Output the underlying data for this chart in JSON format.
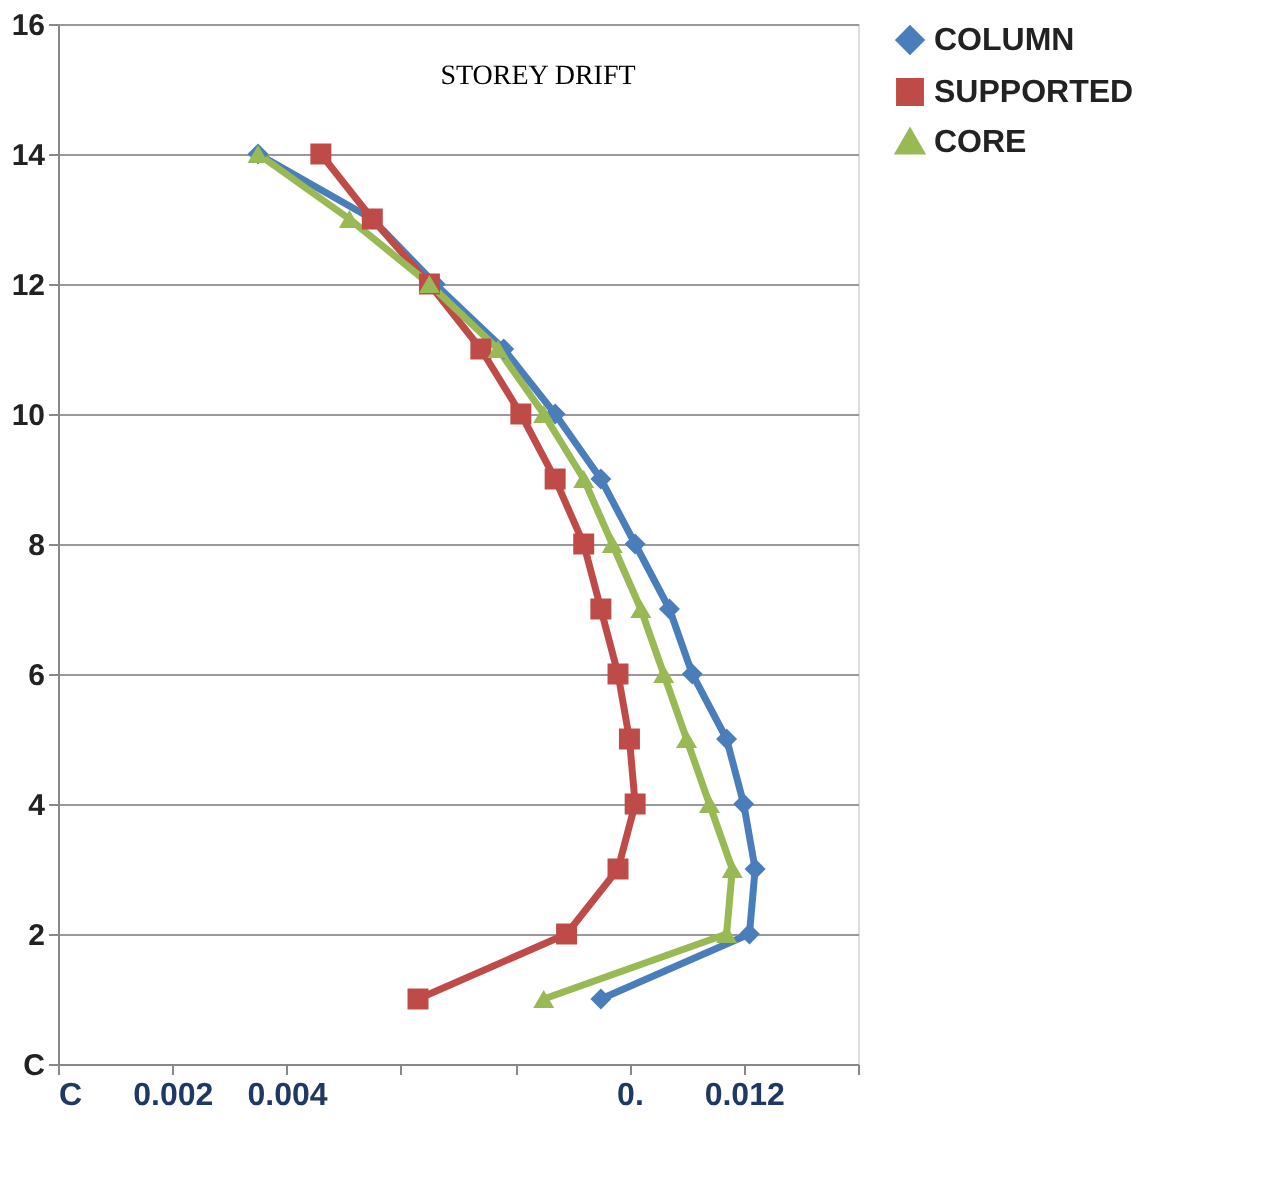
{
  "chart_data": {
    "type": "line",
    "title": "STOREY DRIFT",
    "xlim": [
      0,
      0.014
    ],
    "xticks": [
      {
        "value": 0,
        "label": "C"
      },
      {
        "value": 0.002,
        "label": "0.002"
      },
      {
        "value": 0.004,
        "label": "0.004"
      },
      {
        "value": 0.006,
        "label": null
      },
      {
        "value": 0.008,
        "label": null
      },
      {
        "value": 0.01,
        "label": "0."
      },
      {
        "value": 0.012,
        "label": "0.012"
      },
      {
        "value": 0.014,
        "label": null
      }
    ],
    "ylim": [
      0,
      16
    ],
    "yticks": [
      {
        "value": 0,
        "label": "C"
      },
      2,
      4,
      6,
      8,
      10,
      12,
      14,
      16
    ],
    "grid": "y",
    "legend": "right",
    "series": [
      {
        "name": "COLUMN",
        "color": "#4a7ebb",
        "marker": "diamond",
        "x": [
          0.0095,
          0.0121,
          0.0122,
          0.012,
          0.0117,
          0.0111,
          0.0107,
          0.0101,
          0.0095,
          0.0087,
          0.0078,
          0.0066,
          0.0055,
          0.0035
        ],
        "values": [
          1,
          2,
          3,
          4,
          5,
          6,
          7,
          8,
          9,
          10,
          11,
          12,
          13,
          14
        ]
      },
      {
        "name": "SUPPORTED",
        "color": "#be4b48",
        "marker": "square",
        "x": [
          0.0063,
          0.0089,
          0.0098,
          0.0101,
          0.01,
          0.0098,
          0.0095,
          0.0092,
          0.0087,
          0.0081,
          0.0074,
          0.0065,
          0.0055,
          0.0046
        ],
        "values": [
          1,
          2,
          3,
          4,
          5,
          6,
          7,
          8,
          9,
          10,
          11,
          12,
          13,
          14
        ]
      },
      {
        "name": "CORE",
        "color": "#98b954",
        "marker": "triangle",
        "x": [
          0.0085,
          0.0117,
          0.0118,
          0.0114,
          0.011,
          0.0106,
          0.0102,
          0.0097,
          0.0092,
          0.0085,
          0.0077,
          0.0065,
          0.0051,
          0.0035
        ],
        "values": [
          1,
          2,
          3,
          4,
          5,
          6,
          7,
          8,
          9,
          10,
          11,
          12,
          13,
          14
        ]
      }
    ]
  }
}
